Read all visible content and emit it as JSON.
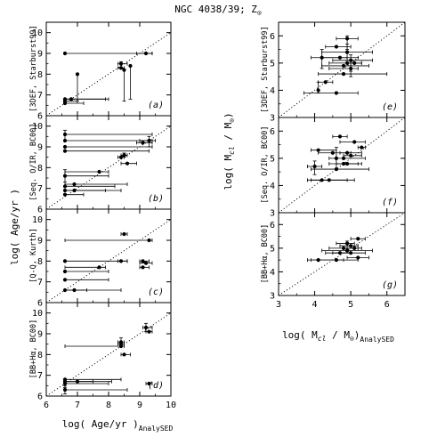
{
  "title": "NGC 4038/39; Z",
  "title_symbol": "⊙",
  "left_xlabel": "log( Age/yr )",
  "left_xlabel_sub": "AnalySED",
  "left_ylabel": "log( Age/yr )",
  "right_xlabel": "log( M",
  "right_xlabel_cl": "cl",
  "right_xlabel_mid": " / M",
  "right_xlabel_sun": "⊙",
  "right_xlabel_end": ")",
  "right_xlabel_sub": "AnalySED",
  "right_ylabel": "log( M",
  "right_ylabel_cl": "cl",
  "right_ylabel_mid": " / M",
  "right_ylabel_sun": "⊙",
  "right_ylabel_end": ")",
  "chart_data": [
    {
      "id": "a",
      "type": "scatter",
      "letter": "(a)",
      "method": "[3DEF, Starburst99]",
      "xlim": [
        6,
        10
      ],
      "ylim": [
        6,
        10.5
      ],
      "xticks": [
        6,
        7,
        8,
        9,
        10
      ],
      "yticks": [
        6,
        7,
        8,
        9,
        10
      ],
      "show_x_ticklabels": false,
      "one_to_one_line": true,
      "points": [
        {
          "x": 6.6,
          "y": 9.0,
          "xerr": [
            6.6,
            9.4
          ]
        },
        {
          "x": 9.2,
          "y": 9.0,
          "xerr": [
            8.9,
            9.4
          ]
        },
        {
          "x": 8.4,
          "y": 8.5,
          "xerr": [
            8.3,
            8.6
          ],
          "yerr": [
            8.3,
            8.6
          ]
        },
        {
          "x": 8.4,
          "y": 8.3,
          "xerr": [
            8.3,
            8.5
          ]
        },
        {
          "x": 7.0,
          "y": 8.0,
          "yerr": [
            6.7,
            8.0
          ]
        },
        {
          "x": 8.5,
          "y": 8.2,
          "yerr": [
            6.7,
            8.2
          ]
        },
        {
          "x": 8.7,
          "y": 8.4,
          "yerr": [
            6.8,
            8.4
          ]
        },
        {
          "x": 6.6,
          "y": 6.8,
          "xerr": [
            6.6,
            7.9
          ]
        },
        {
          "x": 6.6,
          "y": 6.7,
          "xerr": [
            6.6,
            7.0
          ]
        },
        {
          "x": 6.8,
          "y": 6.8,
          "xerr": [
            6.6,
            8.0
          ]
        },
        {
          "x": 6.6,
          "y": 6.6,
          "xerr": [
            6.6,
            7.2
          ]
        }
      ]
    },
    {
      "id": "b",
      "type": "scatter",
      "letter": "(b)",
      "method": "[Seq. O/IR, BC00]",
      "xlim": [
        6,
        10
      ],
      "ylim": [
        6,
        10.5
      ],
      "xticks": [
        6,
        7,
        8,
        9,
        10
      ],
      "yticks": [
        6,
        7,
        8,
        9,
        10
      ],
      "show_x_ticklabels": false,
      "one_to_one_line": true,
      "points": [
        {
          "x": 6.6,
          "y": 9.6,
          "xerr": [
            6.6,
            9.4
          ],
          "yerr": [
            9.3,
            9.8
          ]
        },
        {
          "x": 6.6,
          "y": 9.3,
          "xerr": [
            6.6,
            9.4
          ]
        },
        {
          "x": 6.6,
          "y": 9.0,
          "xerr": [
            6.6,
            9.4
          ]
        },
        {
          "x": 6.6,
          "y": 8.8,
          "xerr": [
            6.6,
            9.3
          ]
        },
        {
          "x": 9.3,
          "y": 9.3,
          "xerr": [
            9.0,
            9.5
          ],
          "yerr": [
            9.0,
            9.5
          ]
        },
        {
          "x": 9.1,
          "y": 9.2,
          "xerr": [
            8.9,
            9.4
          ]
        },
        {
          "x": 8.5,
          "y": 8.6,
          "xerr": [
            8.4,
            8.6
          ],
          "yerr": [
            8.5,
            8.7
          ]
        },
        {
          "x": 8.4,
          "y": 8.5,
          "xerr": [
            8.3,
            8.5
          ]
        },
        {
          "x": 8.6,
          "y": 8.2,
          "xerr": [
            8.4,
            8.9
          ]
        },
        {
          "x": 7.7,
          "y": 7.8,
          "xerr": [
            6.6,
            8.0
          ]
        },
        {
          "x": 6.6,
          "y": 7.6,
          "xerr": [
            6.6,
            8.0
          ],
          "yerr": [
            7.3,
            7.9
          ]
        },
        {
          "x": 6.6,
          "y": 7.1,
          "xerr": [
            6.6,
            8.2
          ]
        },
        {
          "x": 6.9,
          "y": 7.2,
          "xerr": [
            6.6,
            8.6
          ]
        },
        {
          "x": 6.6,
          "y": 6.9,
          "xerr": [
            6.6,
            8.4
          ]
        },
        {
          "x": 6.9,
          "y": 6.9,
          "xerr": [
            6.6,
            7.9
          ]
        },
        {
          "x": 6.6,
          "y": 6.7,
          "xerr": [
            6.6,
            7.2
          ]
        }
      ]
    },
    {
      "id": "c",
      "type": "scatter",
      "letter": "(c)",
      "method": "[Q-Q, Kurth]",
      "xlim": [
        6,
        10
      ],
      "ylim": [
        6,
        10.5
      ],
      "xticks": [
        6,
        7,
        8,
        9,
        10
      ],
      "yticks": [
        6,
        7,
        8,
        9,
        10
      ],
      "show_x_ticklabels": false,
      "one_to_one_line": true,
      "points": [
        {
          "x": 8.5,
          "y": 9.3,
          "xerr": [
            8.4,
            8.6
          ]
        },
        {
          "x": 9.3,
          "y": 9.0,
          "xerr": [
            6.6,
            9.4
          ]
        },
        {
          "x": 6.6,
          "y": 8.0,
          "xerr": [
            6.6,
            8.6
          ]
        },
        {
          "x": 8.4,
          "y": 8.0,
          "xerr": [
            8.3,
            8.6
          ]
        },
        {
          "x": 9.1,
          "y": 8.0,
          "xerr": [
            9.0,
            9.3
          ]
        },
        {
          "x": 9.2,
          "y": 7.9,
          "xerr": [
            9.0,
            9.4
          ]
        },
        {
          "x": 7.7,
          "y": 7.7,
          "xerr": [
            6.6,
            7.9
          ]
        },
        {
          "x": 6.6,
          "y": 7.5,
          "xerr": [
            6.6,
            8.0
          ]
        },
        {
          "x": 9.1,
          "y": 7.7,
          "xerr": [
            9.0,
            9.3
          ]
        },
        {
          "x": 6.6,
          "y": 7.1,
          "xerr": [
            6.6,
            8.0
          ]
        },
        {
          "x": 6.6,
          "y": 6.6,
          "xerr": [
            6.6,
            8.4
          ]
        },
        {
          "x": 6.9,
          "y": 6.6,
          "xerr": [
            6.6,
            7.3
          ]
        }
      ]
    },
    {
      "id": "d",
      "type": "scatter",
      "letter": "(d)",
      "method": "[BB+Hα, BC00]",
      "xlim": [
        6,
        10
      ],
      "ylim": [
        6,
        10.5
      ],
      "xticks": [
        6,
        7,
        8,
        9,
        10
      ],
      "yticks": [
        6,
        7,
        8,
        9,
        10
      ],
      "show_x_ticklabels": true,
      "one_to_one_line": true,
      "points": [
        {
          "x": 9.2,
          "y": 9.3,
          "xerr": [
            9.1,
            9.4
          ],
          "yerr": [
            9.1,
            9.5
          ]
        },
        {
          "x": 9.3,
          "y": 9.1,
          "xerr": [
            9.2,
            9.4
          ]
        },
        {
          "x": 8.4,
          "y": 8.6,
          "xerr": [
            8.3,
            8.5
          ],
          "yerr": [
            8.4,
            8.8
          ]
        },
        {
          "x": 8.4,
          "y": 8.5,
          "xerr": [
            8.3,
            8.5
          ]
        },
        {
          "x": 8.4,
          "y": 8.4,
          "xerr": [
            6.6,
            8.5
          ]
        },
        {
          "x": 8.5,
          "y": 8.0,
          "xerr": [
            8.4,
            8.7
          ]
        },
        {
          "x": 6.6,
          "y": 6.8,
          "xerr": [
            6.6,
            8.4
          ]
        },
        {
          "x": 6.6,
          "y": 6.7,
          "xerr": [
            6.6,
            8.1
          ]
        },
        {
          "x": 7.0,
          "y": 6.7,
          "xerr": [
            6.6,
            7.5
          ]
        },
        {
          "x": 6.6,
          "y": 6.6,
          "xerr": [
            6.6,
            8.0
          ],
          "yerr": [
            6.4,
            6.8
          ]
        },
        {
          "x": 9.3,
          "y": 6.6,
          "xerr": [
            9.2,
            9.4
          ]
        },
        {
          "x": 6.6,
          "y": 6.3,
          "xerr": [
            6.6,
            8.6
          ],
          "yerr": [
            6.1,
            6.5
          ]
        }
      ]
    },
    {
      "id": "e",
      "type": "scatter",
      "letter": "(e)",
      "method": "[3DEF, Starburst99]",
      "xlim": [
        3,
        6.5
      ],
      "ylim": [
        3,
        6.5
      ],
      "xticks": [
        3,
        4,
        5,
        6
      ],
      "yticks": [
        3,
        4,
        5,
        6
      ],
      "show_x_ticklabels": false,
      "one_to_one_line": true,
      "points": [
        {
          "x": 4.9,
          "y": 5.9,
          "xerr": [
            4.6,
            5.2
          ],
          "yerr": [
            5.5,
            6.0
          ]
        },
        {
          "x": 4.6,
          "y": 5.6,
          "xerr": [
            4.3,
            5.0
          ]
        },
        {
          "x": 4.9,
          "y": 5.4,
          "xerr": [
            4.2,
            5.6
          ],
          "yerr": [
            5.1,
            5.7
          ]
        },
        {
          "x": 4.2,
          "y": 5.2,
          "xerr": [
            3.9,
            4.9
          ],
          "yerr": [
            4.8,
            5.5
          ]
        },
        {
          "x": 4.7,
          "y": 5.2,
          "xerr": [
            4.2,
            5.2
          ]
        },
        {
          "x": 5.0,
          "y": 5.1,
          "xerr": [
            4.5,
            5.6
          ],
          "yerr": [
            4.7,
            5.3
          ]
        },
        {
          "x": 4.9,
          "y": 5.0,
          "xerr": [
            4.4,
            5.3
          ]
        },
        {
          "x": 5.1,
          "y": 5.0,
          "xerr": [
            4.9,
            5.3
          ]
        },
        {
          "x": 4.8,
          "y": 4.9,
          "xerr": [
            4.2,
            5.5
          ]
        },
        {
          "x": 5.0,
          "y": 4.8,
          "xerr": [
            4.4,
            5.2
          ],
          "yerr": [
            4.5,
            5.1
          ]
        },
        {
          "x": 4.8,
          "y": 4.6,
          "xerr": [
            4.1,
            6.0
          ]
        },
        {
          "x": 4.3,
          "y": 4.3,
          "xerr": [
            4.1,
            4.5
          ]
        },
        {
          "x": 4.1,
          "y": 4.0,
          "yerr": [
            3.9,
            4.3
          ]
        },
        {
          "x": 4.6,
          "y": 3.9,
          "xerr": [
            3.7,
            5.2
          ]
        }
      ]
    },
    {
      "id": "f",
      "type": "scatter",
      "letter": "(f)",
      "method": "[Seq. O/IR, BC00]",
      "xlim": [
        3,
        6.5
      ],
      "ylim": [
        3,
        6.5
      ],
      "xticks": [
        3,
        4,
        5,
        6
      ],
      "yticks": [
        3,
        4,
        5,
        6
      ],
      "show_x_ticklabels": false,
      "one_to_one_line": true,
      "points": [
        {
          "x": 4.7,
          "y": 5.8,
          "xerr": [
            4.5,
            4.9
          ]
        },
        {
          "x": 5.1,
          "y": 5.6,
          "xerr": [
            4.7,
            5.4
          ]
        },
        {
          "x": 5.3,
          "y": 5.4,
          "xerr": [
            5.2,
            5.4
          ]
        },
        {
          "x": 4.1,
          "y": 5.3,
          "xerr": [
            3.9,
            4.6
          ]
        },
        {
          "x": 4.5,
          "y": 5.2,
          "xerr": [
            4.1,
            5.0
          ]
        },
        {
          "x": 4.9,
          "y": 5.2,
          "xerr": [
            4.7,
            5.3
          ]
        },
        {
          "x": 5.0,
          "y": 5.1,
          "xerr": [
            4.8,
            5.3
          ]
        },
        {
          "x": 4.8,
          "y": 5.0,
          "xerr": [
            4.4,
            5.4
          ]
        },
        {
          "x": 4.6,
          "y": 5.0,
          "yerr": [
            4.6,
            5.4
          ]
        },
        {
          "x": 4.8,
          "y": 4.8,
          "xerr": [
            4.4,
            5.2
          ]
        },
        {
          "x": 4.9,
          "y": 4.8,
          "xerr": [
            4.6,
            5.3
          ]
        },
        {
          "x": 4.0,
          "y": 4.7,
          "xerr": [
            3.8,
            4.2
          ],
          "yerr": [
            4.4,
            4.9
          ]
        },
        {
          "x": 4.6,
          "y": 4.6,
          "xerr": [
            3.9,
            5.5
          ]
        },
        {
          "x": 4.4,
          "y": 4.2,
          "xerr": [
            3.9,
            4.9
          ]
        },
        {
          "x": 4.2,
          "y": 4.2,
          "xerr": [
            3.8,
            5.1
          ]
        }
      ]
    },
    {
      "id": "g",
      "type": "scatter",
      "letter": "(g)",
      "method": "[BB+Hα, BC00]",
      "xlim": [
        3,
        6.5
      ],
      "ylim": [
        3,
        6.5
      ],
      "xticks": [
        3,
        4,
        5,
        6
      ],
      "yticks": [
        3,
        4,
        5,
        6
      ],
      "show_x_ticklabels": true,
      "one_to_one_line": true,
      "points": [
        {
          "x": 5.2,
          "y": 5.4,
          "xerr": [
            5.0,
            5.4
          ]
        },
        {
          "x": 4.9,
          "y": 5.2,
          "xerr": [
            4.6,
            5.1
          ],
          "yerr": [
            5.0,
            5.3
          ]
        },
        {
          "x": 5.0,
          "y": 5.1,
          "xerr": [
            4.7,
            5.2
          ]
        },
        {
          "x": 4.8,
          "y": 5.0,
          "xerr": [
            4.4,
            5.3
          ]
        },
        {
          "x": 5.1,
          "y": 5.0,
          "xerr": [
            4.8,
            5.2
          ]
        },
        {
          "x": 4.9,
          "y": 4.9,
          "xerr": [
            4.2,
            5.6
          ]
        },
        {
          "x": 5.0,
          "y": 4.8,
          "xerr": [
            4.5,
            5.4
          ]
        },
        {
          "x": 4.7,
          "y": 4.8,
          "xerr": [
            4.3,
            5.0
          ]
        },
        {
          "x": 5.2,
          "y": 4.6,
          "xerr": [
            4.9,
            5.5
          ]
        },
        {
          "x": 4.6,
          "y": 4.5,
          "xerr": [
            3.9,
            5.2
          ]
        },
        {
          "x": 4.1,
          "y": 4.5,
          "xerr": [
            3.8,
            4.8
          ]
        }
      ]
    }
  ]
}
